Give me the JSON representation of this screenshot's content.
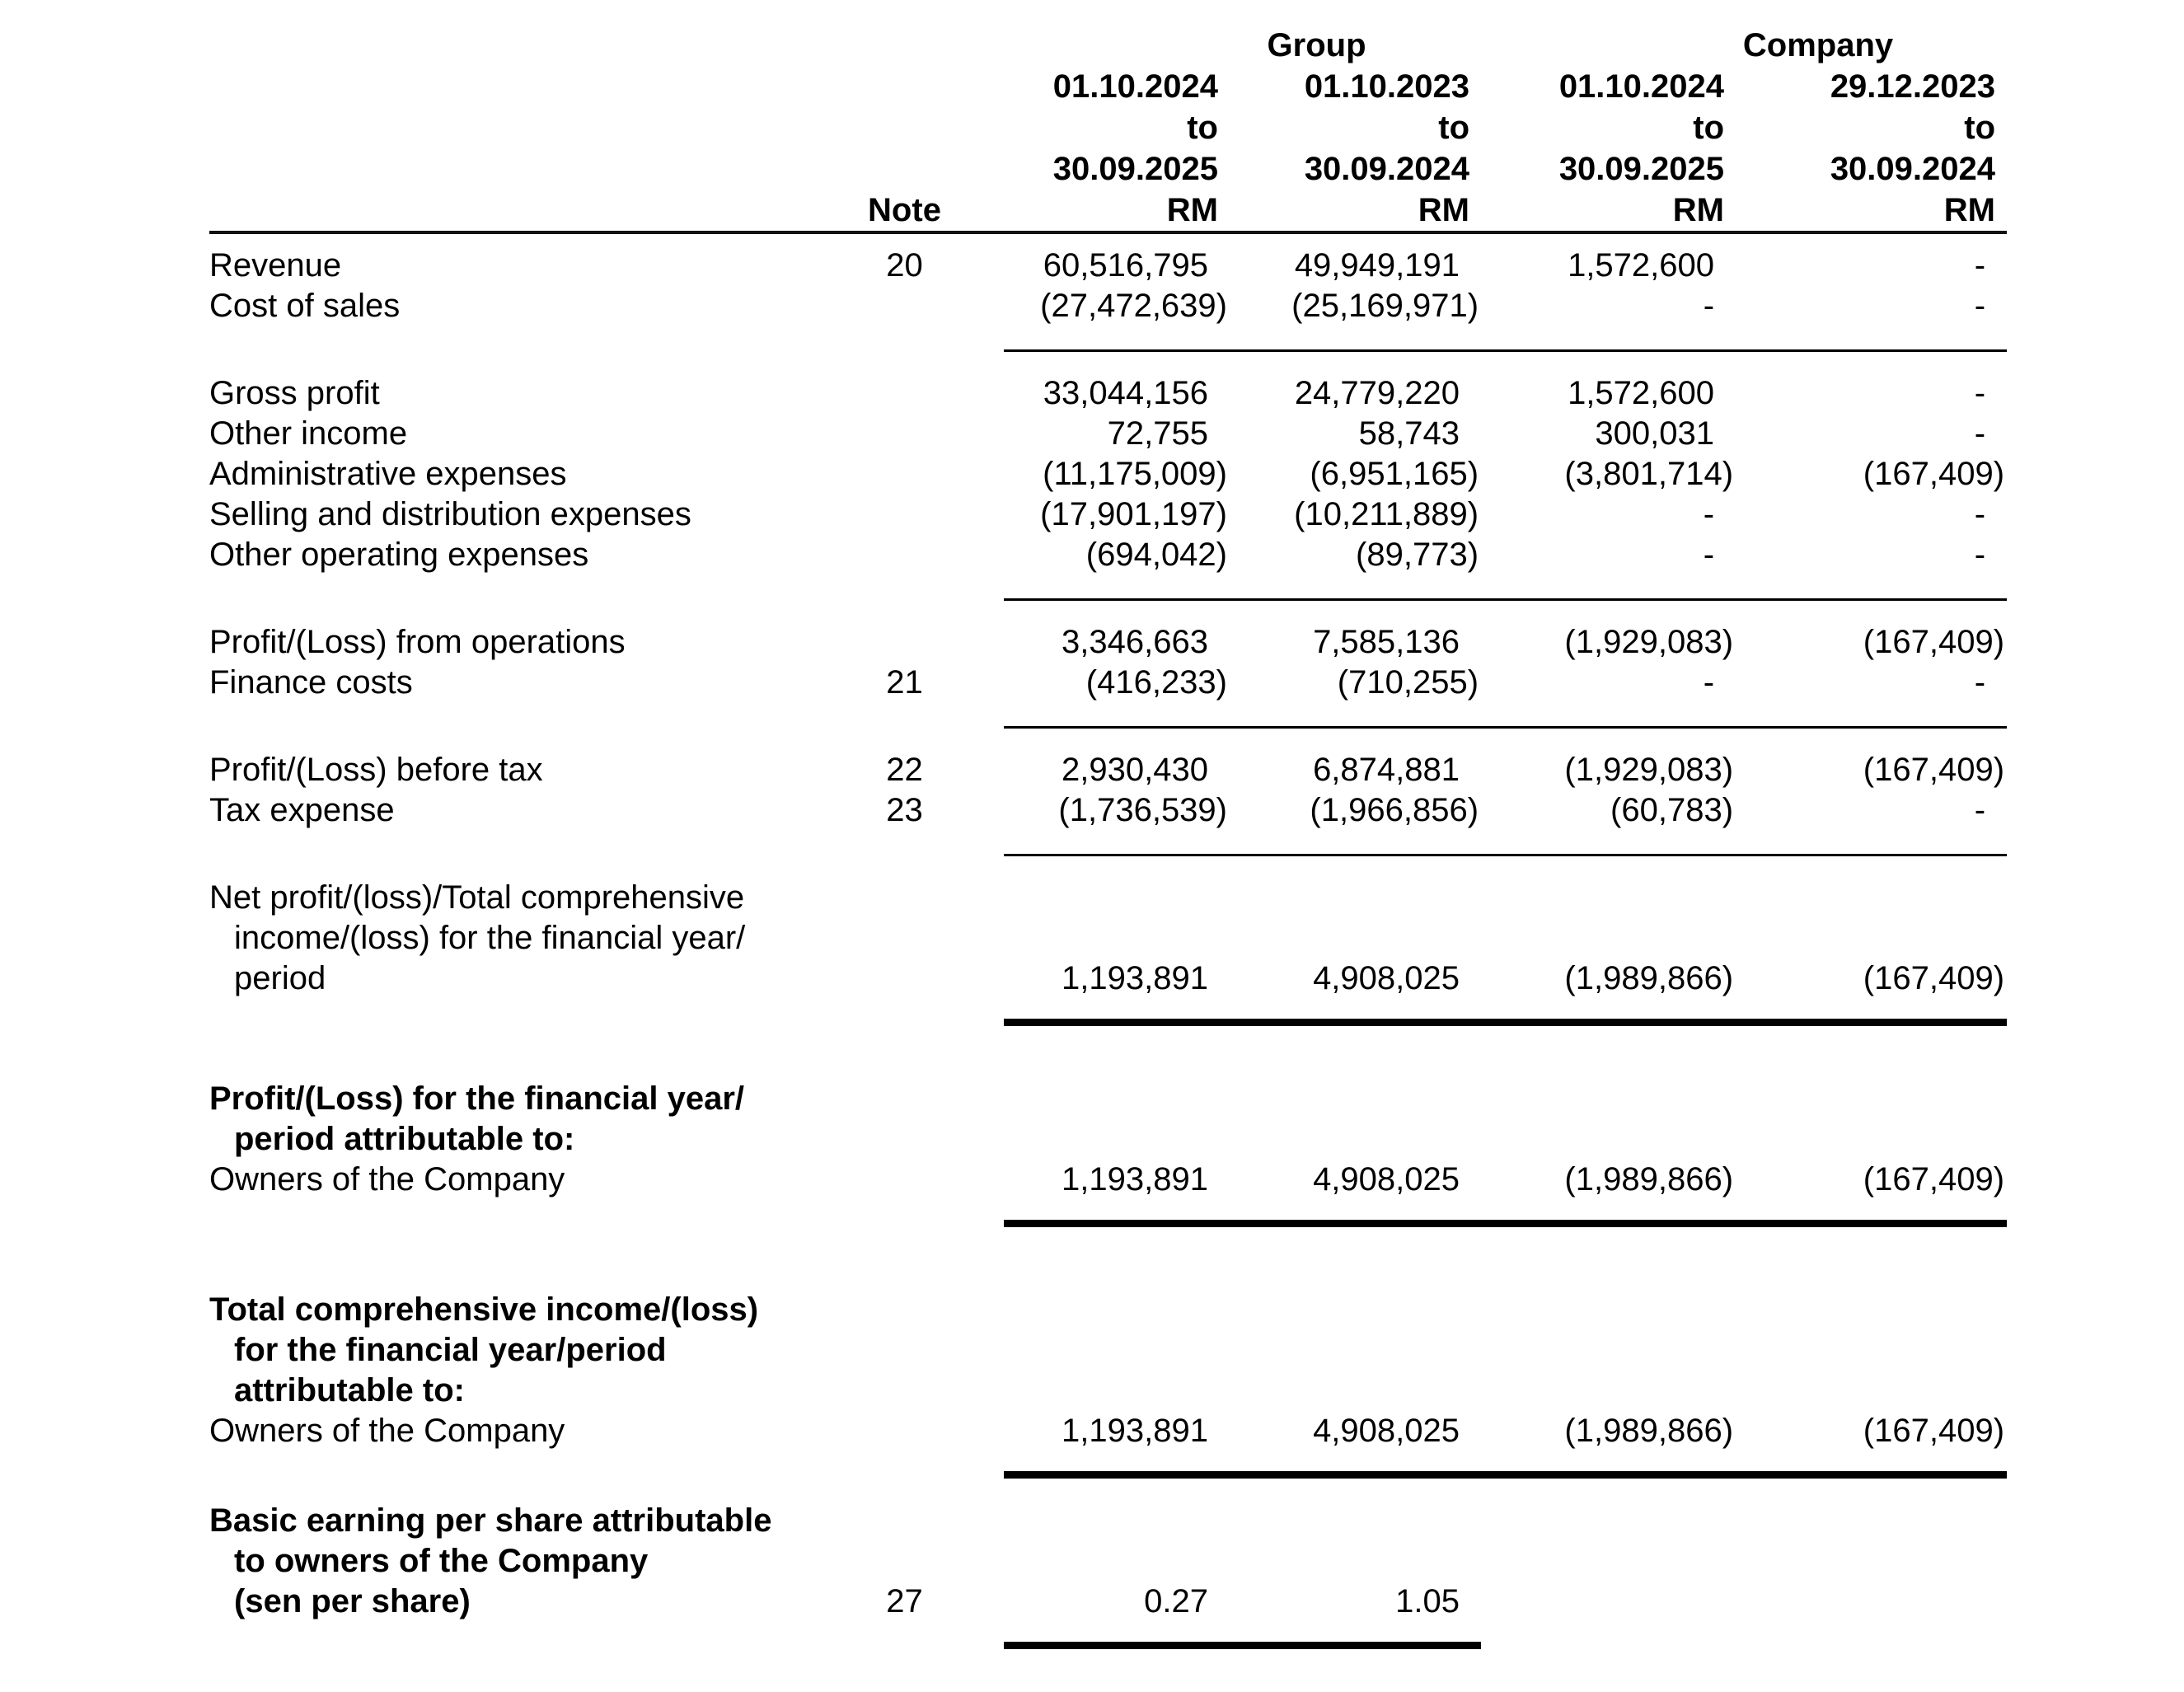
{
  "table": {
    "header": {
      "group_label": "Group",
      "company_label": "Company",
      "note_label": "Note",
      "periods": [
        {
          "lines": [
            "01.10.2024",
            "to",
            "30.09.2025",
            "RM"
          ]
        },
        {
          "lines": [
            "01.10.2023",
            "to",
            "30.09.2024",
            "RM"
          ]
        },
        {
          "lines": [
            "01.10.2024",
            "to",
            "30.09.2025",
            "RM"
          ]
        },
        {
          "lines": [
            "29.12.2023",
            "to",
            "30.09.2024",
            "RM"
          ]
        }
      ]
    },
    "rows": [
      {
        "label": "Revenue",
        "note": "20",
        "values": [
          "60,516,795",
          "49,949,191",
          "1,572,600",
          "-"
        ]
      },
      {
        "label": "Cost of sales",
        "note": "",
        "values": [
          "(27,472,639)",
          "(25,169,971)",
          "-",
          "-"
        ]
      },
      {
        "label": "Gross profit",
        "note": "",
        "values": [
          "33,044,156",
          "24,779,220",
          "1,572,600",
          "-"
        ]
      },
      {
        "label": "Other income",
        "note": "",
        "values": [
          "72,755",
          "58,743",
          "300,031",
          "-"
        ]
      },
      {
        "label": "Administrative expenses",
        "note": "",
        "values": [
          "(11,175,009)",
          "(6,951,165)",
          "(3,801,714)",
          "(167,409)"
        ]
      },
      {
        "label": "Selling and distribution expenses",
        "note": "",
        "values": [
          "(17,901,197)",
          "(10,211,889)",
          "-",
          "-"
        ]
      },
      {
        "label": "Other operating expenses",
        "note": "",
        "values": [
          "(694,042)",
          "(89,773)",
          "-",
          "-"
        ]
      },
      {
        "label": "Profit/(Loss) from operations",
        "note": "",
        "values": [
          "3,346,663",
          "7,585,136",
          "(1,929,083)",
          "(167,409)"
        ]
      },
      {
        "label": "Finance costs",
        "note": "21",
        "values": [
          "(416,233)",
          "(710,255)",
          "-",
          "-"
        ]
      },
      {
        "label": "Profit/(Loss) before tax",
        "note": "22",
        "values": [
          "2,930,430",
          "6,874,881",
          "(1,929,083)",
          "(167,409)"
        ]
      },
      {
        "label": "Tax expense",
        "note": "23",
        "values": [
          "(1,736,539)",
          "(1,966,856)",
          "(60,783)",
          "-"
        ]
      },
      {
        "label_lines": [
          "Net profit/(loss)/Total comprehensive",
          "income/(loss) for the financial year/",
          "period"
        ],
        "note": "",
        "values": [
          "1,193,891",
          "4,908,025",
          "(1,989,866)",
          "(167,409)"
        ]
      },
      {
        "label_lines": [
          "Profit/(Loss) for the financial year/",
          "period attributable to:"
        ],
        "note": "",
        "values": [
          "",
          "",
          "",
          ""
        ]
      },
      {
        "label": "Owners of the Company",
        "note": "",
        "values": [
          "1,193,891",
          "4,908,025",
          "(1,989,866)",
          "(167,409)"
        ]
      },
      {
        "label_lines": [
          "Total comprehensive income/(loss)",
          "for the financial year/period",
          "attributable to:"
        ],
        "note": "",
        "values": [
          "",
          "",
          "",
          ""
        ]
      },
      {
        "label": "Owners of the Company",
        "note": "",
        "values": [
          "1,193,891",
          "4,908,025",
          "(1,989,866)",
          "(167,409)"
        ]
      },
      {
        "label_lines": [
          "Basic earning per share attributable",
          "to owners of the Company",
          "(sen per share)"
        ],
        "note": "27",
        "values": [
          "0.27",
          "1.05",
          "",
          ""
        ]
      }
    ]
  }
}
